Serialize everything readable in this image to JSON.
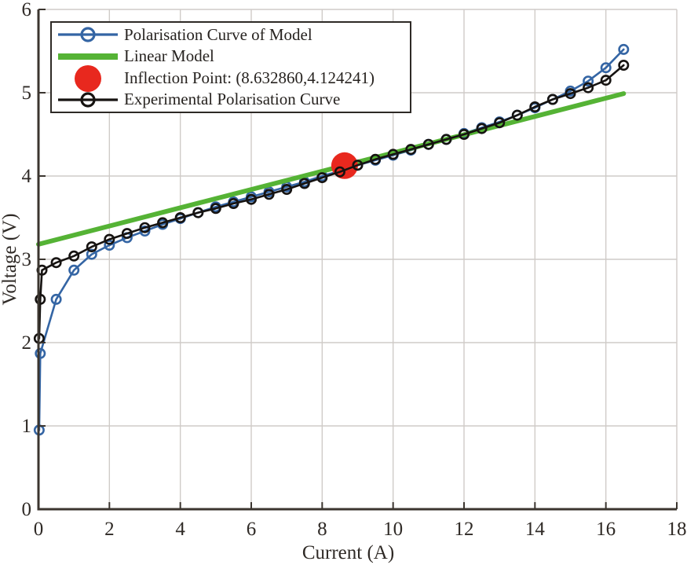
{
  "figure": {
    "background_color": "#ffffff",
    "axis_color": "#3b352f",
    "grid_color": "#cfcbc8",
    "tick_label_color": "#2f2a26",
    "legend_border_color": "#2e2a26"
  },
  "chart_data": {
    "type": "line",
    "title": "",
    "xlabel": "Current (A)",
    "ylabel": "Voltage (V)",
    "xlim": [
      0,
      18
    ],
    "ylim": [
      0,
      6
    ],
    "xticks": [
      0,
      2,
      4,
      6,
      8,
      10,
      12,
      14,
      16,
      18
    ],
    "yticks": [
      0,
      1,
      2,
      3,
      4,
      5,
      6
    ],
    "grid": true,
    "legend_position": "top-left",
    "inflection_point": {
      "x": 8.63286,
      "y": 4.124241
    },
    "series": [
      {
        "name": "Polarisation Curve of Model",
        "color": "#3465a4",
        "marker": "circle",
        "marker_size": 14,
        "line_width": 2.6,
        "points": [
          [
            0.02,
            0.95
          ],
          [
            0.05,
            1.87
          ],
          [
            0.5,
            2.52
          ],
          [
            1.0,
            2.87
          ],
          [
            1.5,
            3.06
          ],
          [
            2.0,
            3.17
          ],
          [
            2.5,
            3.26
          ],
          [
            3.0,
            3.34
          ],
          [
            3.5,
            3.42
          ],
          [
            4.0,
            3.49
          ],
          [
            4.5,
            3.56
          ],
          [
            5.0,
            3.63
          ],
          [
            5.5,
            3.69
          ],
          [
            6.0,
            3.75
          ],
          [
            6.5,
            3.81
          ],
          [
            7.0,
            3.87
          ],
          [
            7.5,
            3.93
          ],
          [
            8.0,
            4.0
          ],
          [
            8.5,
            4.06
          ],
          [
            9.0,
            4.13
          ],
          [
            9.5,
            4.19
          ],
          [
            10.0,
            4.25
          ],
          [
            10.5,
            4.31
          ],
          [
            11.0,
            4.38
          ],
          [
            11.5,
            4.44
          ],
          [
            12.0,
            4.51
          ],
          [
            12.5,
            4.58
          ],
          [
            13.0,
            4.65
          ],
          [
            13.5,
            4.73
          ],
          [
            14.0,
            4.82
          ],
          [
            14.5,
            4.92
          ],
          [
            15.0,
            5.02
          ],
          [
            15.5,
            5.14
          ],
          [
            16.0,
            5.3
          ],
          [
            16.5,
            5.52
          ]
        ]
      },
      {
        "name": "Linear Model",
        "color": "#55b335",
        "marker": "none",
        "marker_size": 0,
        "line_width": 6,
        "points": [
          [
            0,
            3.18
          ],
          [
            16.5,
            4.99
          ]
        ]
      },
      {
        "name": "Inflection Point: (8.632860,4.124241)",
        "color": "#e8281e",
        "marker": "filled-circle",
        "marker_size": 34,
        "line_width": 0,
        "points": [
          [
            8.63286,
            4.124241
          ]
        ]
      },
      {
        "name": "Experimental Polarisation Curve",
        "color": "#161311",
        "marker": "circle",
        "marker_size": 14,
        "line_width": 2.6,
        "points": [
          [
            0.02,
            2.05
          ],
          [
            0.05,
            2.52
          ],
          [
            0.1,
            2.87
          ],
          [
            0.5,
            2.96
          ],
          [
            1.0,
            3.04
          ],
          [
            1.5,
            3.15
          ],
          [
            2.0,
            3.24
          ],
          [
            2.5,
            3.31
          ],
          [
            3.0,
            3.38
          ],
          [
            3.5,
            3.44
          ],
          [
            4.0,
            3.5
          ],
          [
            4.5,
            3.56
          ],
          [
            5.0,
            3.61
          ],
          [
            5.5,
            3.67
          ],
          [
            6.0,
            3.72
          ],
          [
            6.5,
            3.78
          ],
          [
            7.0,
            3.84
          ],
          [
            7.5,
            3.91
          ],
          [
            8.0,
            3.98
          ],
          [
            8.5,
            4.05
          ],
          [
            9.0,
            4.13
          ],
          [
            9.5,
            4.2
          ],
          [
            10.0,
            4.26
          ],
          [
            10.5,
            4.32
          ],
          [
            11.0,
            4.38
          ],
          [
            11.5,
            4.44
          ],
          [
            12.0,
            4.5
          ],
          [
            12.5,
            4.57
          ],
          [
            13.0,
            4.64
          ],
          [
            13.5,
            4.73
          ],
          [
            14.0,
            4.83
          ],
          [
            14.5,
            4.92
          ],
          [
            15.0,
            4.99
          ],
          [
            15.5,
            5.06
          ],
          [
            16.0,
            5.15
          ],
          [
            16.5,
            5.33
          ]
        ]
      }
    ]
  }
}
